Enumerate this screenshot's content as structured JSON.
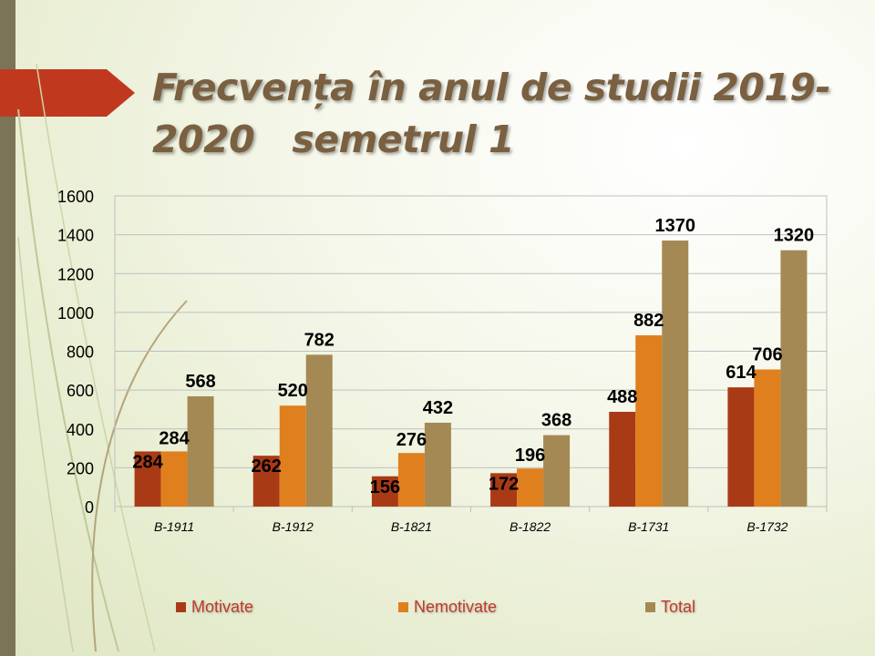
{
  "slide": {
    "title_line1": "Frecvența în anul de studii 2019-",
    "title_line2": "2020   semetrul 1"
  },
  "colors": {
    "Motivate": "#a93a16",
    "Nemotivate": "#e07f1e",
    "Total": "#a48954"
  },
  "chart_data": {
    "type": "bar",
    "categories": [
      "B-1911",
      "B-1912",
      "B-1821",
      "B-1822",
      "B-1731",
      "B-1732"
    ],
    "series": [
      {
        "name": "Motivate",
        "values": [
          284,
          262,
          156,
          172,
          488,
          614
        ]
      },
      {
        "name": "Nemotivate",
        "values": [
          284,
          520,
          276,
          196,
          882,
          706
        ]
      },
      {
        "name": "Total",
        "values": [
          568,
          782,
          432,
          368,
          1370,
          1320
        ]
      }
    ],
    "yticks": [
      0,
      200,
      400,
      600,
      800,
      1000,
      1200,
      1400,
      1600
    ],
    "ylim": [
      0,
      1600
    ],
    "grid": true,
    "legend": "bottom"
  }
}
